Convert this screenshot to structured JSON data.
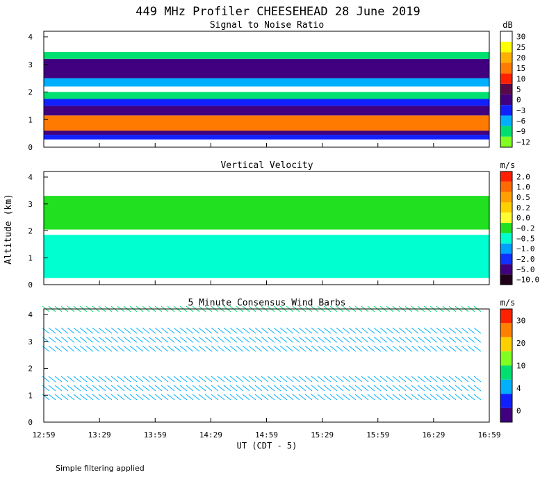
{
  "title": "449 MHz Profiler CHEESEHEAD 28 June 2019",
  "footnote": "Simple filtering applied",
  "ylabel": "Altitude (km)",
  "xlabel": "UT  (CDT - 5)",
  "colors": {
    "background": "#ffffff",
    "axis": "#000000"
  },
  "chart_data": [
    {
      "type": "heatmap",
      "title": "Signal to Noise Ratio",
      "unit": "dB",
      "x_ticks": [
        "12:59",
        "13:29",
        "13:59",
        "14:29",
        "14:59",
        "15:29",
        "15:59",
        "16:29",
        "16:59"
      ],
      "ylim": [
        0,
        4
      ],
      "y_ticks": [
        "0",
        "1",
        "2",
        "3",
        "4"
      ],
      "colorbar": {
        "labels": [
          "30",
          "25",
          "20",
          "15",
          "10",
          "5",
          "0",
          "−3",
          "−6",
          "−9",
          "−12"
        ],
        "colors": [
          "#ffffff",
          "#ffff00",
          "#ffb000",
          "#ff7a00",
          "#ff2000",
          "#5a0a4a",
          "#400080",
          "#1020ff",
          "#00b0ff",
          "#00e070",
          "#80ff20"
        ]
      },
      "layers": [
        {
          "from": 0.0,
          "to": 0.28,
          "color": "#ffffff"
        },
        {
          "from": 0.28,
          "to": 0.45,
          "color": "#1020ff"
        },
        {
          "from": 0.45,
          "to": 0.6,
          "color": "#400080"
        },
        {
          "from": 0.6,
          "to": 1.15,
          "color": "#ff7a00"
        },
        {
          "from": 1.15,
          "to": 1.5,
          "color": "#400080"
        },
        {
          "from": 1.5,
          "to": 1.75,
          "color": "#1020ff"
        },
        {
          "from": 1.75,
          "to": 2.0,
          "color": "#00e070"
        },
        {
          "from": 2.0,
          "to": 2.2,
          "color": "#ffffff"
        },
        {
          "from": 2.2,
          "to": 2.5,
          "color": "#00b0ff"
        },
        {
          "from": 2.5,
          "to": 3.2,
          "color": "#400080"
        },
        {
          "from": 3.2,
          "to": 3.45,
          "color": "#00e070"
        },
        {
          "from": 3.45,
          "to": 4.1,
          "color": "#ffffff"
        }
      ]
    },
    {
      "type": "heatmap",
      "title": "Vertical Velocity",
      "unit": "m/s",
      "x_ticks": [
        "12:59",
        "13:29",
        "13:59",
        "14:29",
        "14:59",
        "15:29",
        "15:59",
        "16:29",
        "16:59"
      ],
      "ylim": [
        0,
        4
      ],
      "y_ticks": [
        "0",
        "1",
        "2",
        "3",
        "4"
      ],
      "colorbar": {
        "labels": [
          "2.0",
          "1.0",
          "0.5",
          "0.2",
          "0.0",
          "−0.2",
          "−0.5",
          "−1.0",
          "−2.0",
          "−5.0",
          "−10.0"
        ],
        "colors": [
          "#ff2000",
          "#ff6a00",
          "#ffa000",
          "#ffd000",
          "#ffff30",
          "#20e020",
          "#00ffd0",
          "#00a0ff",
          "#1030ff",
          "#400080",
          "#20001a"
        ]
      },
      "layers": [
        {
          "from": 0.25,
          "to": 1.85,
          "color": "#00ffd0"
        },
        {
          "from": 2.05,
          "to": 3.3,
          "color": "#20e020"
        }
      ]
    },
    {
      "type": "scatter",
      "title": "5 Minute Consensus Wind Barbs",
      "unit": "m/s",
      "x_ticks": [
        "12:59",
        "13:29",
        "13:59",
        "14:29",
        "14:59",
        "15:29",
        "15:59",
        "16:29",
        "16:59"
      ],
      "ylim": [
        0,
        4
      ],
      "y_ticks": [
        "0",
        "1",
        "2",
        "3",
        "4"
      ],
      "colorbar": {
        "labels": [
          "30",
          "20",
          "10",
          "4",
          "0"
        ],
        "colors": [
          "#ff2000",
          "#ff8000",
          "#ffd000",
          "#80ff20",
          "#00e070",
          "#00b0ff",
          "#1020ff",
          "#400080"
        ]
      },
      "layers": [
        {
          "from": 0.6,
          "to": 1.6,
          "color": "#00b0ff"
        },
        {
          "from": 2.3,
          "to": 3.4,
          "color": "#00b0ff"
        },
        {
          "from": 3.9,
          "to": 4.4,
          "color": "#00e070"
        }
      ]
    }
  ]
}
